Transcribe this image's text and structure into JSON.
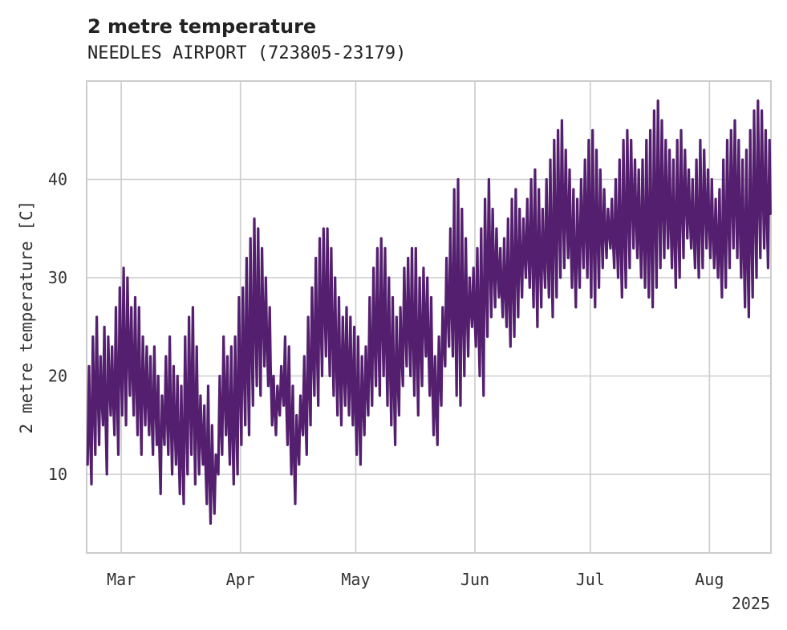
{
  "chart_data": {
    "type": "line",
    "title": "2 metre temperature",
    "subtitle": "NEEDLES AIRPORT (723805-23179)",
    "ylabel": "2 metre temperature [C]",
    "xlabel": "",
    "year_label": "2025",
    "x_range": [
      "2025-02-20",
      "2025-08-17"
    ],
    "ylim": [
      2,
      50
    ],
    "grid": true,
    "x_ticks": [
      {
        "date": "2025-03-01",
        "label": "Mar"
      },
      {
        "date": "2025-04-01",
        "label": "Apr"
      },
      {
        "date": "2025-05-01",
        "label": "May"
      },
      {
        "date": "2025-06-01",
        "label": "Jun"
      },
      {
        "date": "2025-07-01",
        "label": "Jul"
      },
      {
        "date": "2025-08-01",
        "label": "Aug"
      }
    ],
    "y_ticks": [
      10,
      20,
      30,
      40
    ],
    "series": [
      {
        "color": "#541f6e",
        "resolution": "daily min/max",
        "start_date": "2025-02-20",
        "daily_min": [
          11,
          9,
          12,
          13,
          15,
          10,
          16,
          14,
          12,
          16,
          15,
          18,
          16,
          14,
          12,
          15,
          14,
          12,
          13,
          8,
          13,
          12,
          10,
          11,
          8,
          7,
          10,
          12,
          9,
          10,
          11,
          7,
          5,
          6,
          10,
          12,
          14,
          11,
          9,
          10,
          13,
          15,
          14,
          17,
          19,
          18,
          21,
          19,
          15,
          14,
          16,
          17,
          13,
          10,
          7,
          11,
          14,
          12,
          15,
          18,
          17,
          20,
          22,
          20,
          18,
          16,
          15,
          17,
          16,
          15,
          12,
          11,
          14,
          16,
          17,
          19,
          18,
          20,
          17,
          15,
          13,
          16,
          19,
          21,
          20,
          18,
          16,
          19,
          22,
          18,
          14,
          13,
          17,
          21,
          23,
          22,
          18,
          17,
          20,
          22,
          25,
          23,
          20,
          18,
          24,
          26,
          27,
          28,
          26,
          25,
          23,
          24,
          26,
          28,
          30,
          29,
          27,
          25,
          27,
          29,
          28,
          26,
          28,
          30,
          31,
          32,
          29,
          27,
          29,
          31,
          30,
          28,
          27,
          29,
          31,
          32,
          33,
          31,
          30,
          28,
          29,
          31,
          33,
          32,
          30,
          29,
          28,
          27,
          29,
          31,
          32,
          33,
          31,
          29,
          30,
          32,
          34,
          33,
          31,
          30,
          31,
          33,
          32,
          31,
          30,
          28,
          29,
          31,
          33,
          32,
          30,
          27,
          26,
          28,
          30,
          32,
          33,
          31,
          29,
          28
        ],
        "daily_max": [
          21,
          24,
          26,
          22,
          25,
          24,
          23,
          27,
          29,
          31,
          30,
          27,
          28,
          27,
          24,
          23,
          22,
          23,
          20,
          18,
          22,
          24,
          21,
          20,
          19,
          24,
          26,
          27,
          23,
          18,
          17,
          19,
          15,
          12,
          20,
          24,
          22,
          23,
          24,
          28,
          29,
          32,
          34,
          36,
          35,
          33,
          30,
          27,
          20,
          19,
          21,
          24,
          23,
          19,
          16,
          18,
          22,
          26,
          29,
          32,
          34,
          35,
          35,
          33,
          30,
          28,
          26,
          27,
          26,
          25,
          24,
          22,
          23,
          28,
          31,
          33,
          34,
          33,
          30,
          28,
          26,
          27,
          31,
          32,
          33,
          33,
          30,
          31,
          30,
          28,
          22,
          24,
          27,
          32,
          35,
          39,
          40,
          37,
          34,
          30,
          31,
          33,
          35,
          38,
          40,
          37,
          35,
          33,
          34,
          36,
          38,
          39,
          37,
          36,
          38,
          40,
          41,
          39,
          37,
          40,
          42,
          44,
          45,
          46,
          43,
          41,
          39,
          38,
          40,
          42,
          44,
          45,
          43,
          41,
          39,
          37,
          38,
          40,
          42,
          44,
          45,
          44,
          42,
          41,
          42,
          44,
          45,
          47,
          48,
          46,
          44,
          43,
          42,
          44,
          45,
          43,
          41,
          40,
          42,
          44,
          43,
          41,
          40,
          38,
          39,
          42,
          44,
          45,
          46,
          44,
          42,
          43,
          45,
          47,
          48,
          47,
          45,
          44,
          46,
          44
        ]
      }
    ]
  }
}
